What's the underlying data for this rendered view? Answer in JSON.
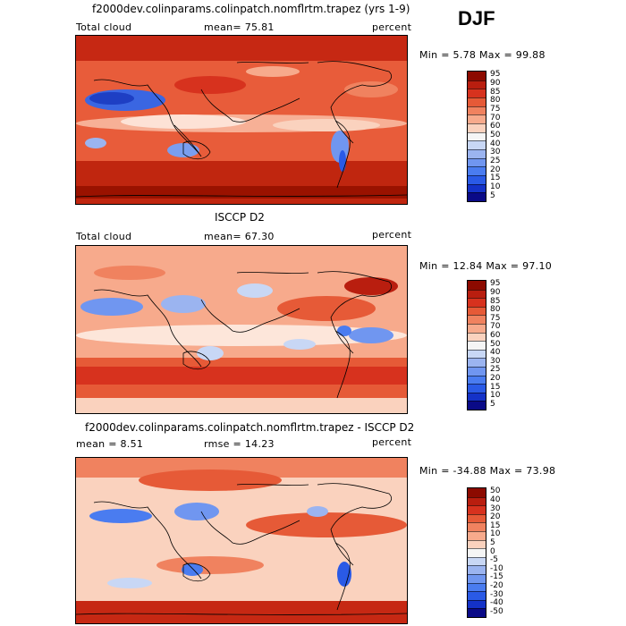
{
  "season": "DJF",
  "panels": [
    {
      "title": "f2000dev.colinparams.colinpatch.nomflrtm.trapez (yrs 1-9)",
      "left_label": "Total cloud",
      "stat_label": "mean=  75.81",
      "units": "percent",
      "minmax": "Min =   5.78 Max =  99.88",
      "colorbar_labels": [
        "95",
        "90",
        "85",
        "80",
        "75",
        "70",
        "60",
        "50",
        "40",
        "30",
        "25",
        "20",
        "15",
        "10",
        "5"
      ]
    },
    {
      "title": "ISCCP D2",
      "left_label": "Total cloud",
      "stat_label": "mean=  67.30",
      "units": "percent",
      "minmax": "Min =  12.84 Max =  97.10",
      "colorbar_labels": [
        "95",
        "90",
        "85",
        "80",
        "75",
        "70",
        "60",
        "50",
        "40",
        "30",
        "25",
        "20",
        "15",
        "10",
        "5"
      ]
    },
    {
      "title": "f2000dev.colinparams.colinpatch.nomflrtm.trapez - ISCCP D2",
      "left_label": "mean =   8.51",
      "stat_label": "rmse =  14.23",
      "units": "percent",
      "minmax": "Min = -34.88 Max =  73.98",
      "colorbar_labels": [
        "50",
        "40",
        "30",
        "20",
        "15",
        "10",
        "5",
        "0",
        "-5",
        "-10",
        "-15",
        "-20",
        "-30",
        "-40",
        "-50"
      ]
    }
  ],
  "colors": {
    "scale": [
      "#0a0a87",
      "#1432c8",
      "#2a5ae6",
      "#4a7cf0",
      "#7096f0",
      "#9bb4f0",
      "#c8d7f5",
      "#f5f5f5",
      "#fad2be",
      "#f7aa8c",
      "#f0825f",
      "#e65a37",
      "#d7321e",
      "#b91e0f",
      "#8c0a00"
    ]
  }
}
